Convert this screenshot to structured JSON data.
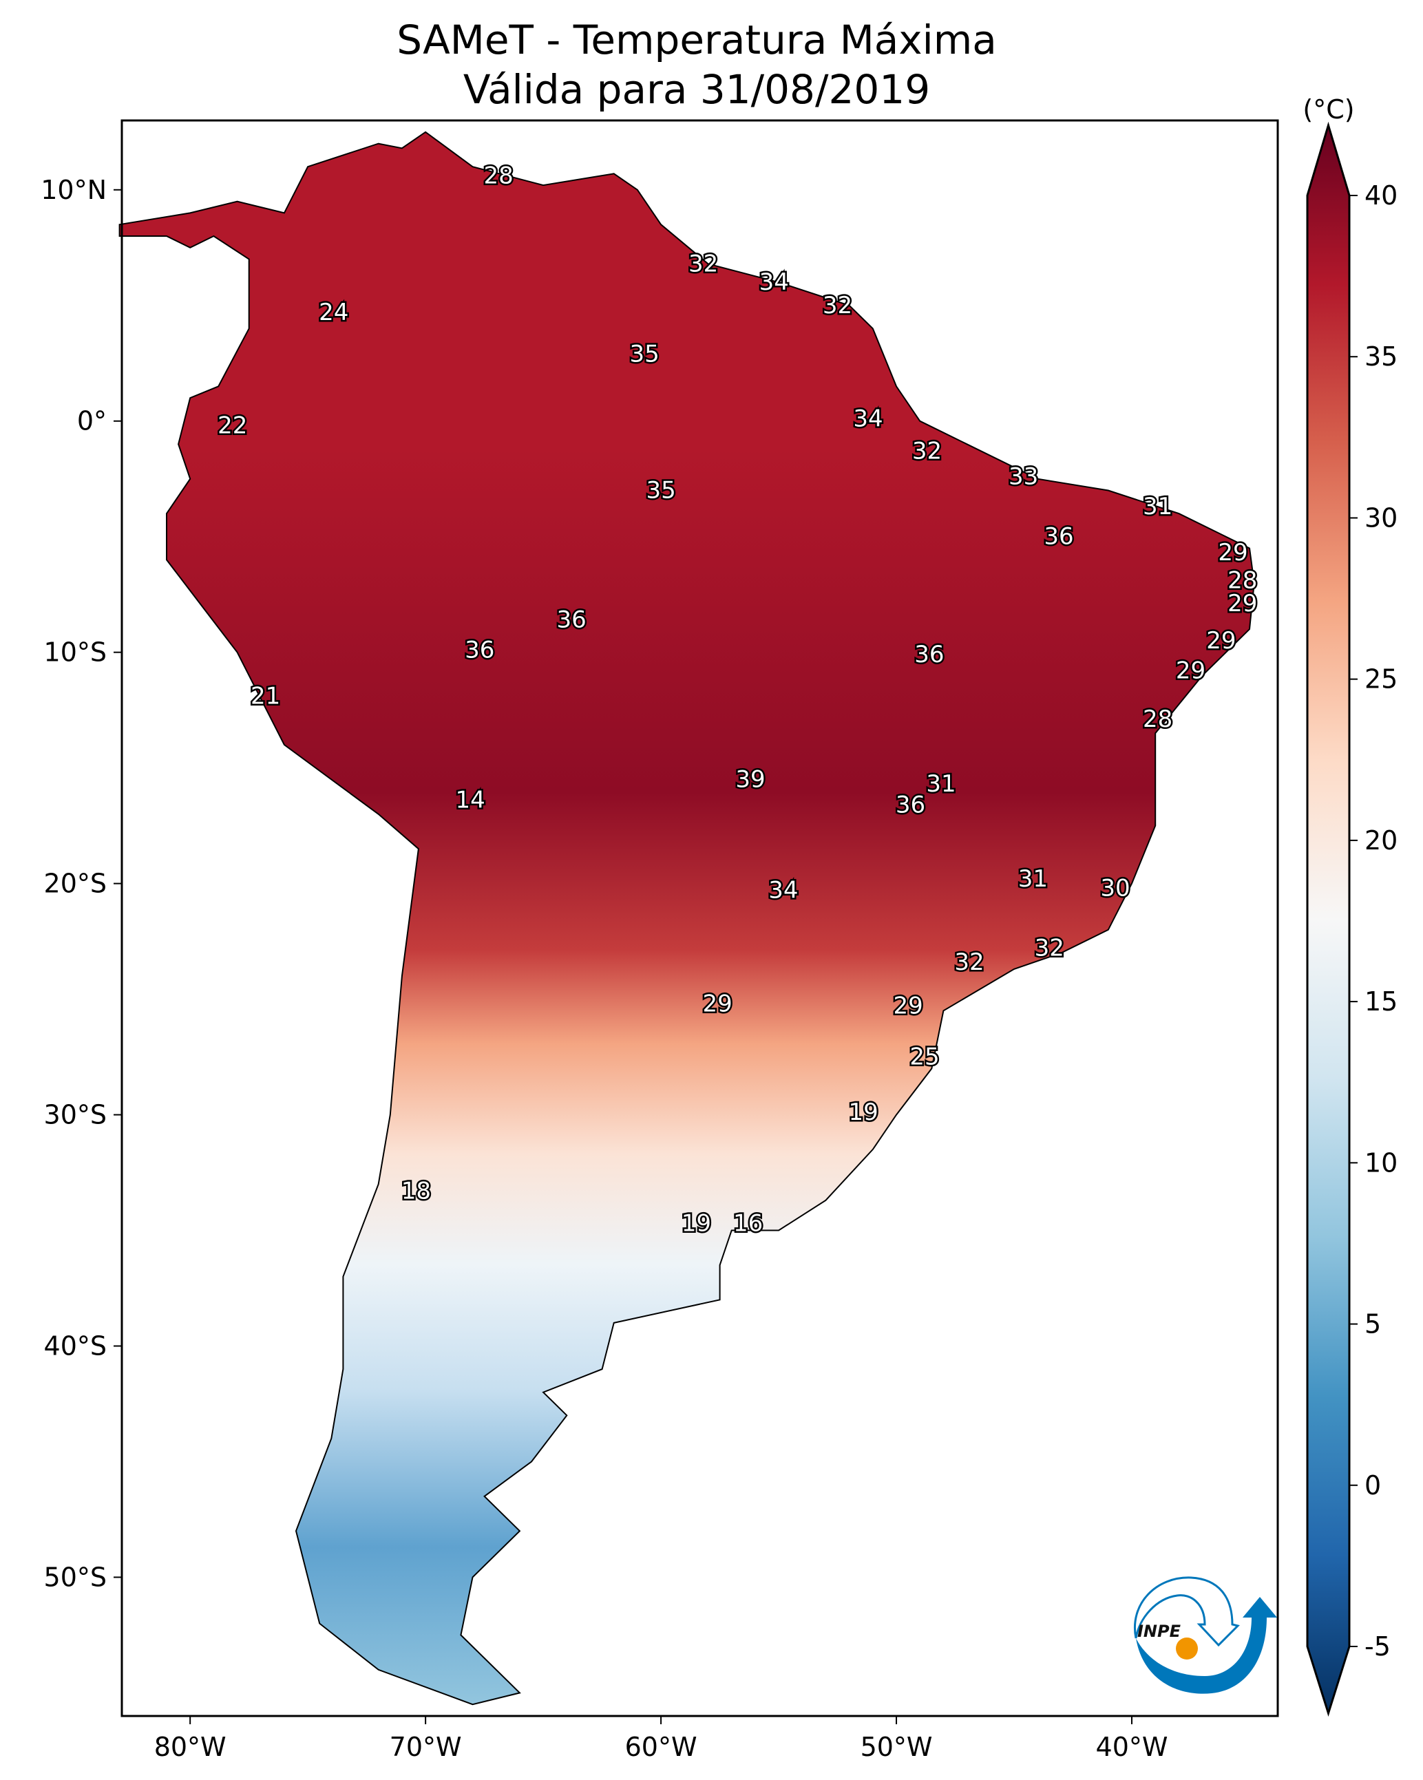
{
  "title": {
    "line1": "SAMeT - Temperatura Máxima",
    "line2": "Válida para 31/08/2019"
  },
  "colorbar": {
    "unit": "(°C)",
    "min": -5,
    "max": 40,
    "extend": "both",
    "colormap": "RdBu_r",
    "ticks": [
      "-5",
      "0",
      "5",
      "10",
      "15",
      "20",
      "25",
      "30",
      "35",
      "40"
    ],
    "colors": [
      "#053061",
      "#2166ac",
      "#4393c3",
      "#92c5de",
      "#d1e5f0",
      "#f7f7f7",
      "#fddbc7",
      "#f4a582",
      "#d6604d",
      "#b2182b",
      "#67001f"
    ]
  },
  "axes": {
    "lon_range": [
      -82.9,
      -33.8
    ],
    "lat_range": [
      -56,
      13
    ],
    "lon_ticks": [
      {
        "v": -80,
        "label": "80°W"
      },
      {
        "v": -70,
        "label": "70°W"
      },
      {
        "v": -60,
        "label": "60°W"
      },
      {
        "v": -50,
        "label": "50°W"
      },
      {
        "v": -40,
        "label": "40°W"
      }
    ],
    "lat_ticks": [
      {
        "v": 10,
        "label": "10°N"
      },
      {
        "v": 0,
        "label": "0°"
      },
      {
        "v": -10,
        "label": "10°S"
      },
      {
        "v": -20,
        "label": "20°S"
      },
      {
        "v": -30,
        "label": "30°S"
      },
      {
        "v": -40,
        "label": "40°S"
      },
      {
        "v": -50,
        "label": "50°S"
      }
    ]
  },
  "contour_labels": [
    {
      "t": "28",
      "lon": -66.9,
      "lat": 10.6
    },
    {
      "t": "32",
      "lon": -58.2,
      "lat": 6.8
    },
    {
      "t": "34",
      "lon": -55.2,
      "lat": 6.0
    },
    {
      "t": "32",
      "lon": -52.5,
      "lat": 5.0
    },
    {
      "t": "24",
      "lon": -73.9,
      "lat": 4.7
    },
    {
      "t": "35",
      "lon": -60.7,
      "lat": 2.9
    },
    {
      "t": "22",
      "lon": -78.2,
      "lat": -0.2
    },
    {
      "t": "34",
      "lon": -51.2,
      "lat": 0.1
    },
    {
      "t": "32",
      "lon": -48.7,
      "lat": -1.3
    },
    {
      "t": "33",
      "lon": -44.6,
      "lat": -2.4
    },
    {
      "t": "35",
      "lon": -60.0,
      "lat": -3.0
    },
    {
      "t": "31",
      "lon": -38.9,
      "lat": -3.7
    },
    {
      "t": "36",
      "lon": -43.1,
      "lat": -5.0
    },
    {
      "t": "29",
      "lon": -35.7,
      "lat": -5.7
    },
    {
      "t": "28",
      "lon": -35.3,
      "lat": -6.9
    },
    {
      "t": "29",
      "lon": -35.3,
      "lat": -7.9
    },
    {
      "t": "36",
      "lon": -63.8,
      "lat": -8.6
    },
    {
      "t": "29",
      "lon": -36.2,
      "lat": -9.5
    },
    {
      "t": "36",
      "lon": -67.7,
      "lat": -9.9
    },
    {
      "t": "36",
      "lon": -48.6,
      "lat": -10.1
    },
    {
      "t": "29",
      "lon": -37.5,
      "lat": -10.8
    },
    {
      "t": "21",
      "lon": -76.8,
      "lat": -11.9
    },
    {
      "t": "28",
      "lon": -38.9,
      "lat": -12.9
    },
    {
      "t": "39",
      "lon": -56.2,
      "lat": -15.5
    },
    {
      "t": "31",
      "lon": -48.1,
      "lat": -15.7
    },
    {
      "t": "14",
      "lon": -68.1,
      "lat": -16.4
    },
    {
      "t": "36",
      "lon": -49.4,
      "lat": -16.6
    },
    {
      "t": "31",
      "lon": -44.2,
      "lat": -19.8
    },
    {
      "t": "30",
      "lon": -40.7,
      "lat": -20.2
    },
    {
      "t": "34",
      "lon": -54.8,
      "lat": -20.3
    },
    {
      "t": "32",
      "lon": -43.5,
      "lat": -22.8
    },
    {
      "t": "32",
      "lon": -46.9,
      "lat": -23.4
    },
    {
      "t": "29",
      "lon": -57.6,
      "lat": -25.2
    },
    {
      "t": "29",
      "lon": -49.5,
      "lat": -25.3
    },
    {
      "t": "25",
      "lon": -48.8,
      "lat": -27.5
    },
    {
      "t": "19",
      "lon": -51.4,
      "lat": -29.9
    },
    {
      "t": "18",
      "lon": -70.4,
      "lat": -33.3
    },
    {
      "t": "19",
      "lon": -58.5,
      "lat": -34.7
    },
    {
      "t": "16",
      "lon": -56.3,
      "lat": -34.7
    }
  ],
  "logo": {
    "text": "INPE",
    "colors": {
      "blue": "#0077bb",
      "orange": "#f29500"
    }
  }
}
